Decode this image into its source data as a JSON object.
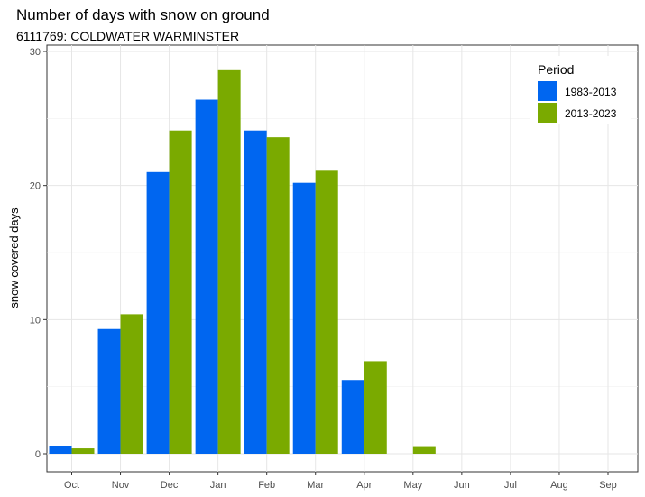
{
  "chart_data": {
    "type": "bar",
    "title": "Number of days with snow on ground",
    "subtitle": "6111769: COLDWATER WARMINSTER",
    "xlabel": "",
    "ylabel": "snow covered days",
    "categories": [
      "Oct",
      "Nov",
      "Dec",
      "Jan",
      "Feb",
      "Mar",
      "Apr",
      "May",
      "Jun",
      "Jul",
      "Aug",
      "Sep"
    ],
    "series": [
      {
        "name": "1983-2013",
        "color": "#0066f0",
        "values": [
          0.6,
          9.3,
          21.0,
          26.4,
          24.1,
          20.2,
          5.5,
          0.0,
          0.0,
          0.0,
          0.0,
          0.0
        ]
      },
      {
        "name": "2013-2023",
        "color": "#7aaa00",
        "values": [
          0.4,
          10.4,
          24.1,
          28.6,
          23.6,
          21.1,
          6.9,
          0.5,
          0.0,
          0.0,
          0.0,
          0.0
        ]
      }
    ],
    "ylim": [
      0,
      30
    ],
    "yticks": [
      0,
      10,
      20,
      30
    ],
    "grid": true,
    "legend": {
      "title": "Period",
      "position": "top-right"
    }
  }
}
